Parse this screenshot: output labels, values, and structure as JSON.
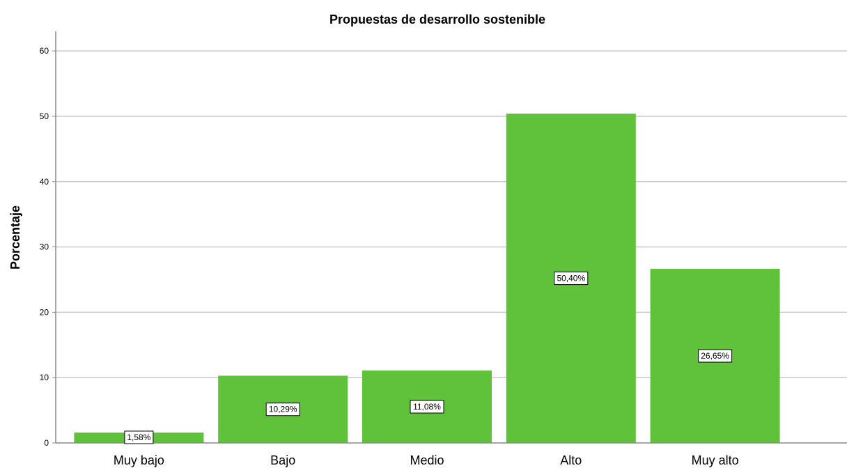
{
  "chart_data": {
    "type": "bar",
    "title": "Propuestas de desarrollo sostenible",
    "xlabel": "",
    "ylabel": "Porcentaje",
    "categories": [
      "Muy bajo",
      "Bajo",
      "Medio",
      "Alto",
      "Muy alto"
    ],
    "values": [
      1.58,
      10.29,
      11.08,
      50.4,
      26.65
    ],
    "data_labels": [
      "1,58%",
      "10,29%",
      "11,08%",
      "50,40%",
      "26,65%"
    ],
    "ylim": [
      0,
      63
    ],
    "yticks": [
      0,
      10,
      20,
      30,
      40,
      50,
      60
    ],
    "grid": true,
    "legend": "none",
    "bar_color": "#5fc23a",
    "grid_color": "#c8c8c8",
    "axis_color": "#888888"
  }
}
